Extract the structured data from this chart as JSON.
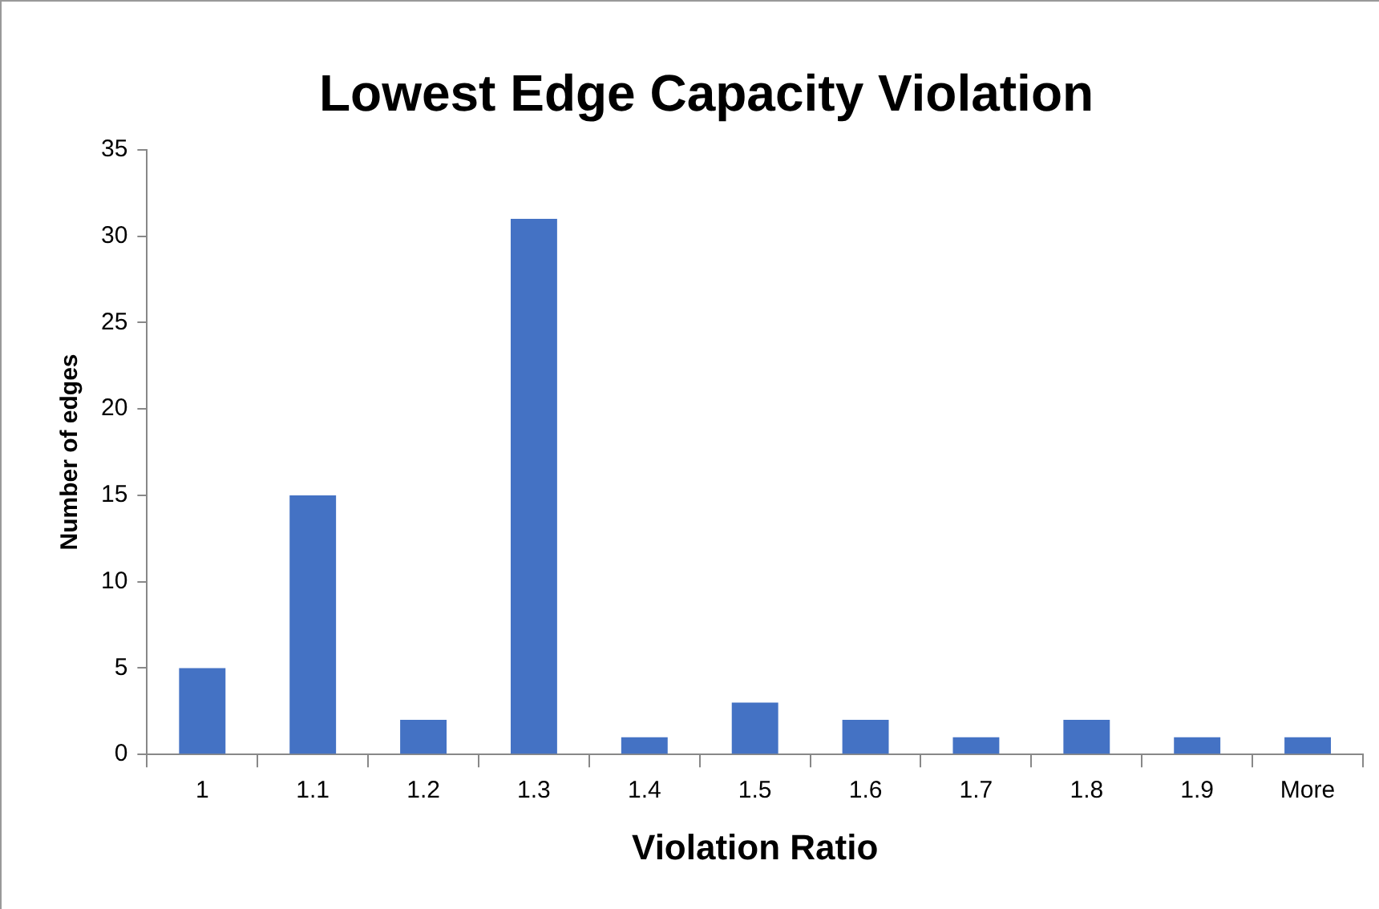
{
  "chart_data": {
    "type": "bar",
    "title": "Lowest Edge Capacity Violation",
    "xlabel": "Violation Ratio",
    "ylabel": "Number of edges",
    "categories": [
      "1",
      "1.1",
      "1.2",
      "1.3",
      "1.4",
      "1.5",
      "1.6",
      "1.7",
      "1.8",
      "1.9",
      "More"
    ],
    "values": [
      5,
      15,
      2,
      31,
      1,
      3,
      2,
      1,
      2,
      1,
      1
    ],
    "color": "#4472c4",
    "ylim": [
      0,
      35
    ],
    "yticks": [
      0,
      5,
      10,
      15,
      20,
      25,
      30,
      35
    ],
    "legend": false
  }
}
